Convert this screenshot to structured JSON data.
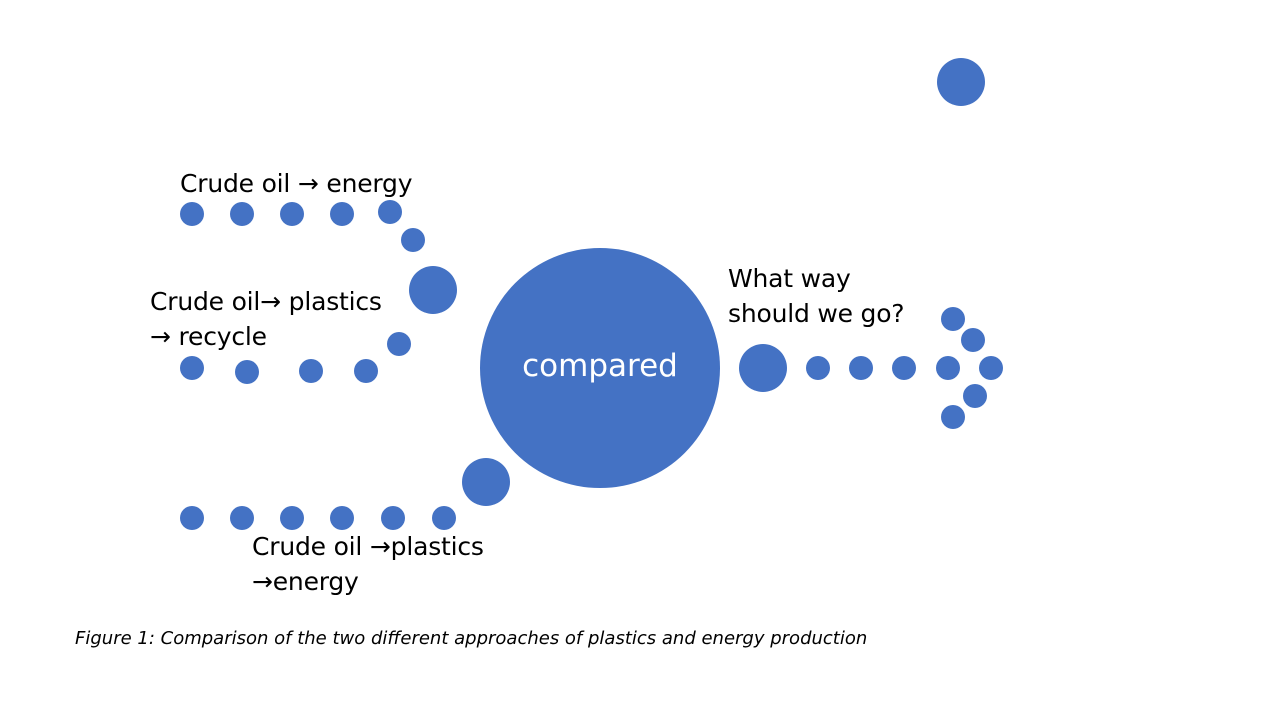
{
  "colors": {
    "dot": "#4472c4",
    "background": "#ffffff",
    "text": "#000000",
    "center_text": "#ffffff"
  },
  "labels": {
    "path_energy": [
      "Crude oil → energy"
    ],
    "path_recycle": [
      "Crude oil→ plastics",
      "→ recycle"
    ],
    "path_plastics_energy": [
      "Crude oil →plastics",
      "→energy"
    ],
    "question": [
      "What way",
      "should we go?"
    ],
    "center": "compared"
  },
  "caption": "Figure 1: Comparison of the two different approaches of plastics and energy production"
}
